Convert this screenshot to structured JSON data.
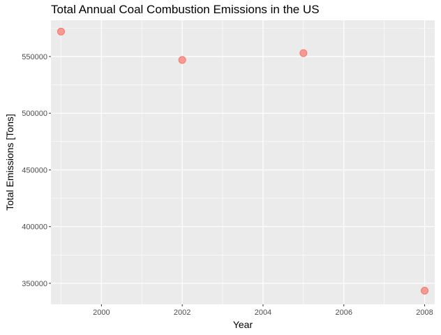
{
  "chart_data": {
    "type": "scatter",
    "title": "Total Annual Coal Combustion Emissions in the US",
    "xlabel": "Year",
    "ylabel": "Total Emissions [Tons]",
    "xlim": [
      1998.75,
      2008.25
    ],
    "ylim": [
      331500,
      582000
    ],
    "x_ticks": [
      2000,
      2002,
      2004,
      2006,
      2008
    ],
    "y_ticks": [
      350000,
      400000,
      450000,
      500000,
      550000
    ],
    "x": [
      1999,
      2002,
      2005,
      2008
    ],
    "y": [
      572000,
      547000,
      553000,
      343500
    ],
    "grid": true,
    "point_color": "#F8766D",
    "panel_background": "#EBEBEB"
  }
}
